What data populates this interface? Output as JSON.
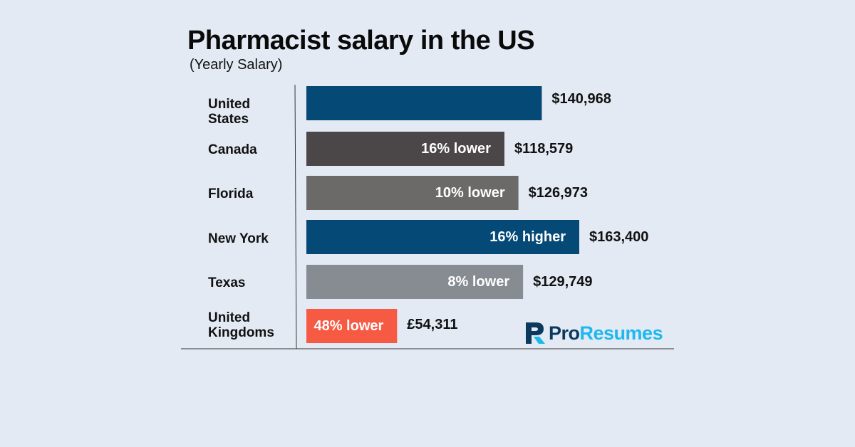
{
  "chart_data": {
    "type": "bar",
    "orientation": "horizontal",
    "title": "Pharmacist salary in the US",
    "subtitle": "(Yearly Salary)",
    "categories": [
      "United States",
      "Canada",
      "Florida",
      "New York",
      "Texas",
      "United Kingdoms"
    ],
    "values": [
      140968,
      118579,
      126973,
      163400,
      129749,
      54311
    ],
    "value_labels": [
      "$140,968",
      "$118,579",
      "$126,973",
      "$163,400",
      "$129,749",
      "£54,311"
    ],
    "bar_labels": [
      "",
      "16% lower",
      "10% lower",
      "16% higher",
      "8% lower",
      "48% lower"
    ],
    "bar_colors": [
      "#054a77",
      "#4b4647",
      "#6b6a69",
      "#054a77",
      "#878c93",
      "#f75a43"
    ],
    "xlim": [
      0,
      163400
    ],
    "grid": false
  },
  "brand": {
    "name_part1": "Pro",
    "name_part2": "Resumes",
    "colors": {
      "dark": "#0c3a5e",
      "accent": "#1db8ef"
    }
  }
}
